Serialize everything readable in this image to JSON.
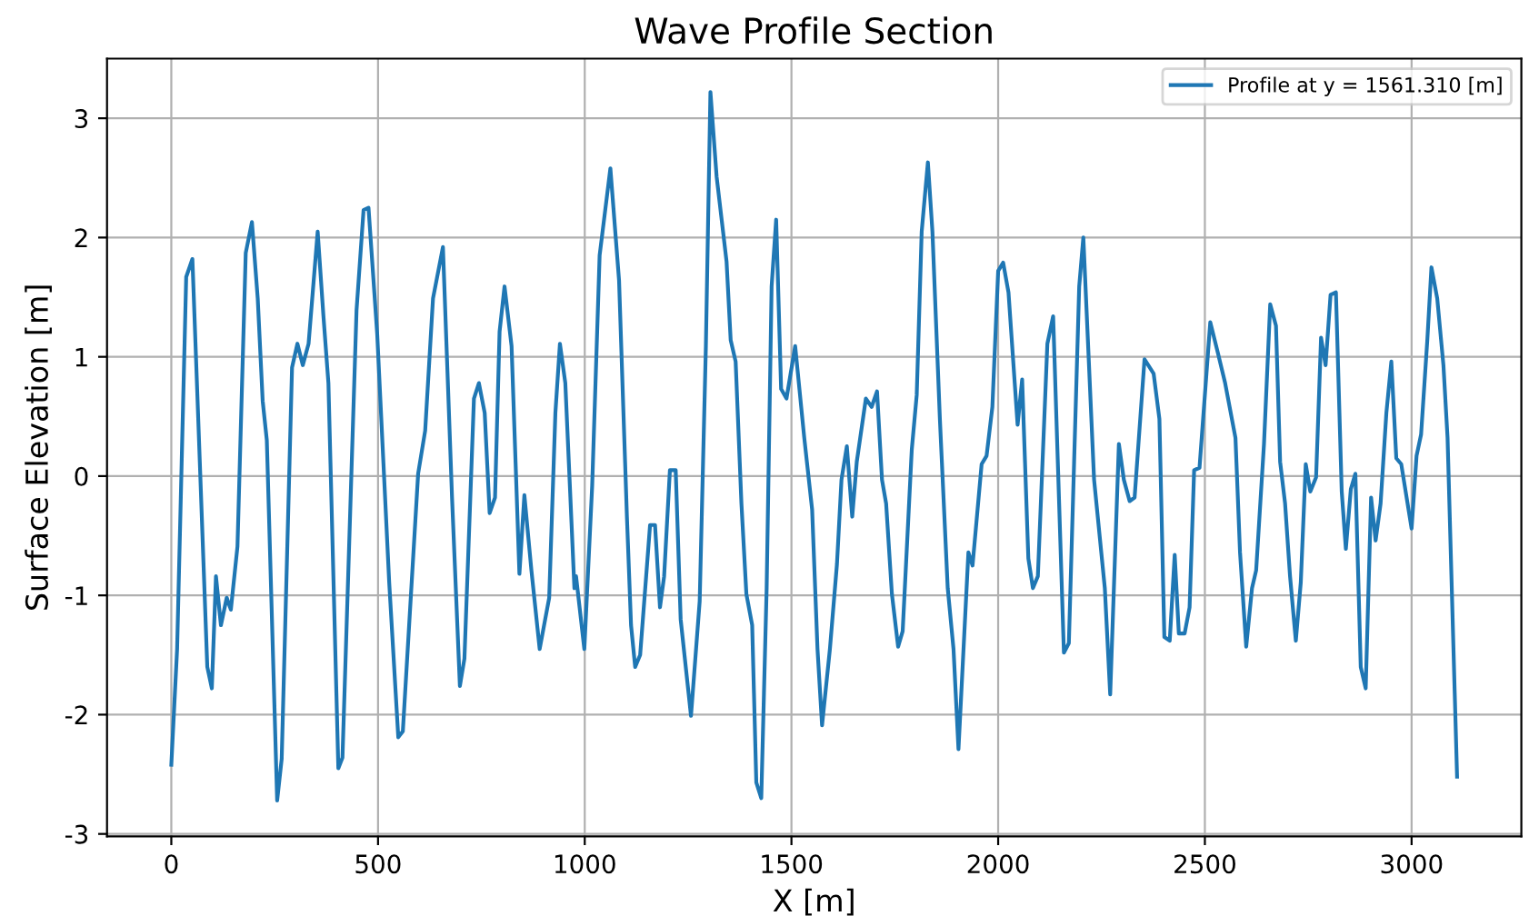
{
  "chart_data": {
    "type": "line",
    "title": "Wave Profile Section",
    "xlabel": "X [m]",
    "ylabel": "Surface Elevation [m]",
    "series": [
      {
        "name": "Profile at y = 1561.310 [m]",
        "color": "#1f77b4",
        "x": [
          0,
          14,
          36,
          51,
          87,
          98,
          108,
          120,
          134,
          144,
          160,
          180,
          195,
          209,
          221,
          231,
          256,
          267,
          292,
          305,
          318,
          332,
          354,
          368,
          380,
          404,
          414,
          448,
          465,
          477,
          498,
          527,
          549,
          560,
          597,
          614,
          633,
          657,
          679,
          698,
          709,
          732,
          744,
          758,
          770,
          783,
          794,
          806,
          823,
          842,
          854,
          871,
          891,
          914,
          929,
          940,
          953,
          975,
          979,
          999,
          1018,
          1036,
          1062,
          1083,
          1102,
          1112,
          1122,
          1134,
          1158,
          1170,
          1182,
          1192,
          1206,
          1220,
          1232,
          1257,
          1278,
          1293,
          1304,
          1319,
          1343,
          1353,
          1365,
          1379,
          1391,
          1405,
          1415,
          1427,
          1440,
          1452,
          1463,
          1475,
          1488,
          1509,
          1531,
          1550,
          1563,
          1574,
          1593,
          1610,
          1621,
          1634,
          1647,
          1658,
          1680,
          1694,
          1707,
          1719,
          1729,
          1743,
          1758,
          1769,
          1791,
          1803,
          1815,
          1830,
          1841,
          1859,
          1878,
          1892,
          1904,
          1928,
          1938,
          1960,
          1972,
          1986,
          2000,
          2012,
          2025,
          2047,
          2058,
          2073,
          2084,
          2096,
          2119,
          2133,
          2159,
          2171,
          2196,
          2206,
          2232,
          2258,
          2271,
          2292,
          2304,
          2318,
          2330,
          2354,
          2376,
          2390,
          2402,
          2415,
          2427,
          2437,
          2451,
          2463,
          2474,
          2487,
          2513,
          2531,
          2549,
          2574,
          2585,
          2600,
          2614,
          2624,
          2643,
          2658,
          2672,
          2682,
          2694,
          2706,
          2720,
          2732,
          2744,
          2755,
          2769,
          2781,
          2792,
          2804,
          2817,
          2831,
          2841,
          2853,
          2864,
          2877,
          2889,
          2902,
          2913,
          2925,
          2939,
          2951,
          2963,
          2975,
          3000,
          3012,
          3023,
          3038,
          3048,
          3062,
          3077,
          3087,
          3110
        ],
        "values": [
          -2.42,
          -1.45,
          1.67,
          1.82,
          -1.6,
          -1.78,
          -0.84,
          -1.25,
          -1.02,
          -1.12,
          -0.59,
          1.87,
          2.13,
          1.49,
          0.63,
          0.3,
          -2.72,
          -2.37,
          0.91,
          1.11,
          0.93,
          1.11,
          2.05,
          1.34,
          0.78,
          -2.45,
          -2.36,
          1.39,
          2.23,
          2.25,
          1.19,
          -0.89,
          -2.19,
          -2.14,
          0.02,
          0.38,
          1.49,
          1.92,
          -0.18,
          -1.76,
          -1.53,
          0.65,
          0.78,
          0.53,
          -0.31,
          -0.18,
          1.21,
          1.59,
          1.09,
          -0.82,
          -0.16,
          -0.79,
          -1.45,
          -1.02,
          0.53,
          1.11,
          0.78,
          -0.94,
          -0.84,
          -1.45,
          -0.08,
          1.85,
          2.58,
          1.64,
          -0.34,
          -1.25,
          -1.6,
          -1.5,
          -0.41,
          -0.41,
          -1.1,
          -0.84,
          0.05,
          0.05,
          -1.2,
          -2.01,
          -1.05,
          1.09,
          3.22,
          2.51,
          1.8,
          1.14,
          0.96,
          -0.23,
          -0.99,
          -1.25,
          -2.57,
          -2.7,
          -0.94,
          1.59,
          2.15,
          0.73,
          0.65,
          1.09,
          0.32,
          -0.28,
          -1.45,
          -2.09,
          -1.45,
          -0.74,
          -0.03,
          0.25,
          -0.34,
          0.12,
          0.65,
          0.58,
          0.71,
          -0.03,
          -0.23,
          -0.99,
          -1.43,
          -1.3,
          0.22,
          0.68,
          2.05,
          2.63,
          2.05,
          0.48,
          -0.94,
          -1.45,
          -2.29,
          -0.64,
          -0.75,
          0.1,
          0.17,
          0.58,
          1.72,
          1.79,
          1.54,
          0.43,
          0.81,
          -0.69,
          -0.94,
          -0.84,
          1.11,
          1.34,
          -1.48,
          -1.4,
          1.59,
          2.0,
          -0.03,
          -0.94,
          -1.83,
          0.27,
          -0.03,
          -0.21,
          -0.18,
          0.98,
          0.86,
          0.48,
          -1.35,
          -1.38,
          -0.66,
          -1.32,
          -1.32,
          -1.1,
          0.05,
          0.07,
          1.29,
          1.04,
          0.78,
          0.32,
          -0.64,
          -1.43,
          -0.94,
          -0.79,
          0.27,
          1.44,
          1.26,
          0.12,
          -0.23,
          -0.84,
          -1.38,
          -0.89,
          0.1,
          -0.13,
          -0.01,
          1.16,
          0.93,
          1.52,
          1.54,
          -0.13,
          -0.61,
          -0.11,
          0.02,
          -1.6,
          -1.78,
          -0.18,
          -0.54,
          -0.23,
          0.53,
          0.96,
          0.15,
          0.1,
          -0.44,
          0.17,
          0.35,
          1.14,
          1.75,
          1.49,
          0.93,
          0.32,
          -2.52
        ]
      }
    ],
    "xlim": [
      -155.5,
      3265.5
    ],
    "ylim": [
      -3.02,
      3.5
    ],
    "xticks": [
      0,
      500,
      1000,
      1500,
      2000,
      2500,
      3000
    ],
    "yticks": [
      -3,
      -2,
      -1,
      0,
      1,
      2,
      3
    ],
    "grid": true,
    "legend": "top right",
    "marker": "none",
    "line_style": "solid"
  }
}
